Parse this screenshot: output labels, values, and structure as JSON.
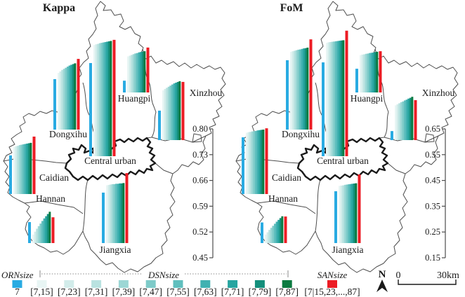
{
  "legend": {
    "orn": {
      "label": "ORNsize",
      "swatch_label": "7",
      "color": "#29ABE2"
    },
    "dsn": {
      "label": "DSNsize",
      "bins": [
        "[7,15]",
        "[7,23]",
        "[7,31]",
        "[7,39]",
        "[7,47]",
        "[7,55]",
        "[7,63]",
        "[7,71]",
        "[7,79]",
        "[7,87]"
      ],
      "colors": [
        "#e8f5f4",
        "#d2ecea",
        "#b9e2e0",
        "#9cd7d5",
        "#7ecbc9",
        "#60bfbe",
        "#41b1b1",
        "#28a5a0",
        "#148f7c",
        "#0c7b41"
      ]
    },
    "san": {
      "label": "SANsize",
      "swatch_label": "[7|15,23,...,87]",
      "color": "#EC1C24"
    }
  },
  "north_label": "N",
  "scalebar": {
    "start": "0",
    "end": "30km"
  },
  "chart_data": [
    {
      "type": "bar",
      "title": "Kappa",
      "ylim": [
        0.45,
        0.8
      ],
      "axis_ticks": [
        "0.80",
        "0.73",
        "0.66",
        "0.59",
        "0.52",
        "0.45"
      ],
      "legend_position": "bottom",
      "districts": [
        {
          "name": "Dongxihu",
          "ORN": 0.587,
          "DSN": [
            0.604,
            0.608,
            0.612,
            0.615,
            0.618,
            0.621,
            0.624,
            0.626,
            0.628,
            0.63
          ],
          "SAN": 0.642
        },
        {
          "name": "Central urban",
          "ORN": 0.703,
          "DSN": [
            0.752,
            0.754,
            0.755,
            0.757,
            0.758,
            0.759,
            0.76,
            0.761,
            0.762,
            0.763
          ],
          "SAN": 0.766
        },
        {
          "name": "Huangpi",
          "ORN": 0.482,
          "DSN": [
            0.548,
            0.55,
            0.552,
            0.554,
            0.556,
            0.557,
            0.559,
            0.56,
            0.561,
            0.562
          ],
          "SAN": 0.572
        },
        {
          "name": "Xinzhou",
          "ORN": 0.53,
          "DSN": [
            0.585,
            0.589,
            0.592,
            0.595,
            0.598,
            0.601,
            0.604,
            0.606,
            0.608,
            0.61
          ],
          "SAN": 0.608
        },
        {
          "name": "Caidian",
          "ORN": 0.555,
          "DSN": [
            0.578,
            0.58,
            0.581,
            0.583,
            0.584,
            0.585,
            0.586,
            0.587,
            0.588,
            0.589
          ],
          "SAN": 0.606
        },
        {
          "name": "Hannan",
          "ORN": 0.507,
          "DSN": [
            0.473,
            0.481,
            0.489,
            0.496,
            0.503,
            0.51,
            0.517,
            0.523,
            0.529,
            0.535
          ],
          "SAN": 0.52
        },
        {
          "name": "Jiangxia",
          "ORN": 0.587,
          "DSN": [
            0.607,
            0.608,
            0.609,
            0.61,
            0.61,
            0.611,
            0.611,
            0.612,
            0.612,
            0.613
          ],
          "SAN": 0.64
        }
      ]
    },
    {
      "type": "bar",
      "title": "FoM",
      "ylim": [
        0.15,
        0.65
      ],
      "axis_ticks": [
        "0.65",
        "0.55",
        "0.45",
        "0.35",
        "0.25",
        "0.15"
      ],
      "legend_position": "bottom",
      "districts": [
        {
          "name": "Dongxihu",
          "ORN": 0.419,
          "DSN": [
            0.452,
            0.454,
            0.456,
            0.458,
            0.46,
            0.461,
            0.463,
            0.465,
            0.466,
            0.468
          ],
          "SAN": 0.5
        },
        {
          "name": "Central urban",
          "ORN": 0.514,
          "DSN": [
            0.59,
            0.592,
            0.593,
            0.594,
            0.595,
            0.596,
            0.597,
            0.598,
            0.599,
            0.6
          ],
          "SAN": 0.637
        },
        {
          "name": "Huangpi",
          "ORN": 0.242,
          "DSN": [
            0.295,
            0.297,
            0.298,
            0.3,
            0.301,
            0.303,
            0.304,
            0.305,
            0.307,
            0.308
          ],
          "SAN": 0.31
        },
        {
          "name": "Xinzhou",
          "ORN": 0.185,
          "DSN": [
            0.285,
            0.289,
            0.293,
            0.297,
            0.3,
            0.304,
            0.307,
            0.311,
            0.314,
            0.318
          ],
          "SAN": 0.305
        },
        {
          "name": "Caidian",
          "ORN": 0.37,
          "DSN": [
            0.388,
            0.39,
            0.391,
            0.393,
            0.394,
            0.395,
            0.397,
            0.398,
            0.399,
            0.4
          ],
          "SAN": 0.405
        },
        {
          "name": "Hannan",
          "ORN": 0.23,
          "DSN": [
            0.183,
            0.192,
            0.201,
            0.209,
            0.217,
            0.225,
            0.233,
            0.24,
            0.247,
            0.254
          ],
          "SAN": 0.253
        },
        {
          "name": "Jiangxia",
          "ORN": 0.351,
          "DSN": [
            0.372,
            0.373,
            0.374,
            0.376,
            0.377,
            0.378,
            0.379,
            0.38,
            0.381,
            0.382
          ],
          "SAN": 0.416
        }
      ]
    }
  ]
}
